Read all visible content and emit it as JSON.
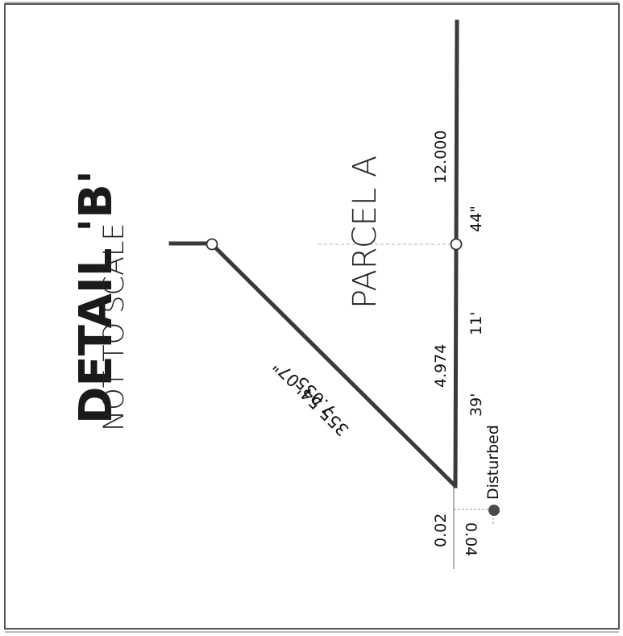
{
  "detail": {
    "title": "DETAIL 'B'",
    "subtitle": "NOT TO SCALE",
    "parcel_label": "PARCEL A"
  },
  "diagonal_course": {
    "bearing": "355° 54' 07\"",
    "bearing_text": "355 54' 07\"",
    "distance": "7.035"
  },
  "boundary_segments": {
    "upper_distance": "12.000",
    "lower_distance": "4.974",
    "bearing_seconds": "44\"",
    "bearing_minutes": "11'",
    "bearing_degrees": "39'"
  },
  "corner_offsets": {
    "offset_along": "0.02",
    "offset_perpendicular": "0.04",
    "monument_note": "Disturbed"
  },
  "colors": {
    "line": "#3a3a3a",
    "frame": "#555555",
    "leader": "#9a9a9a"
  }
}
